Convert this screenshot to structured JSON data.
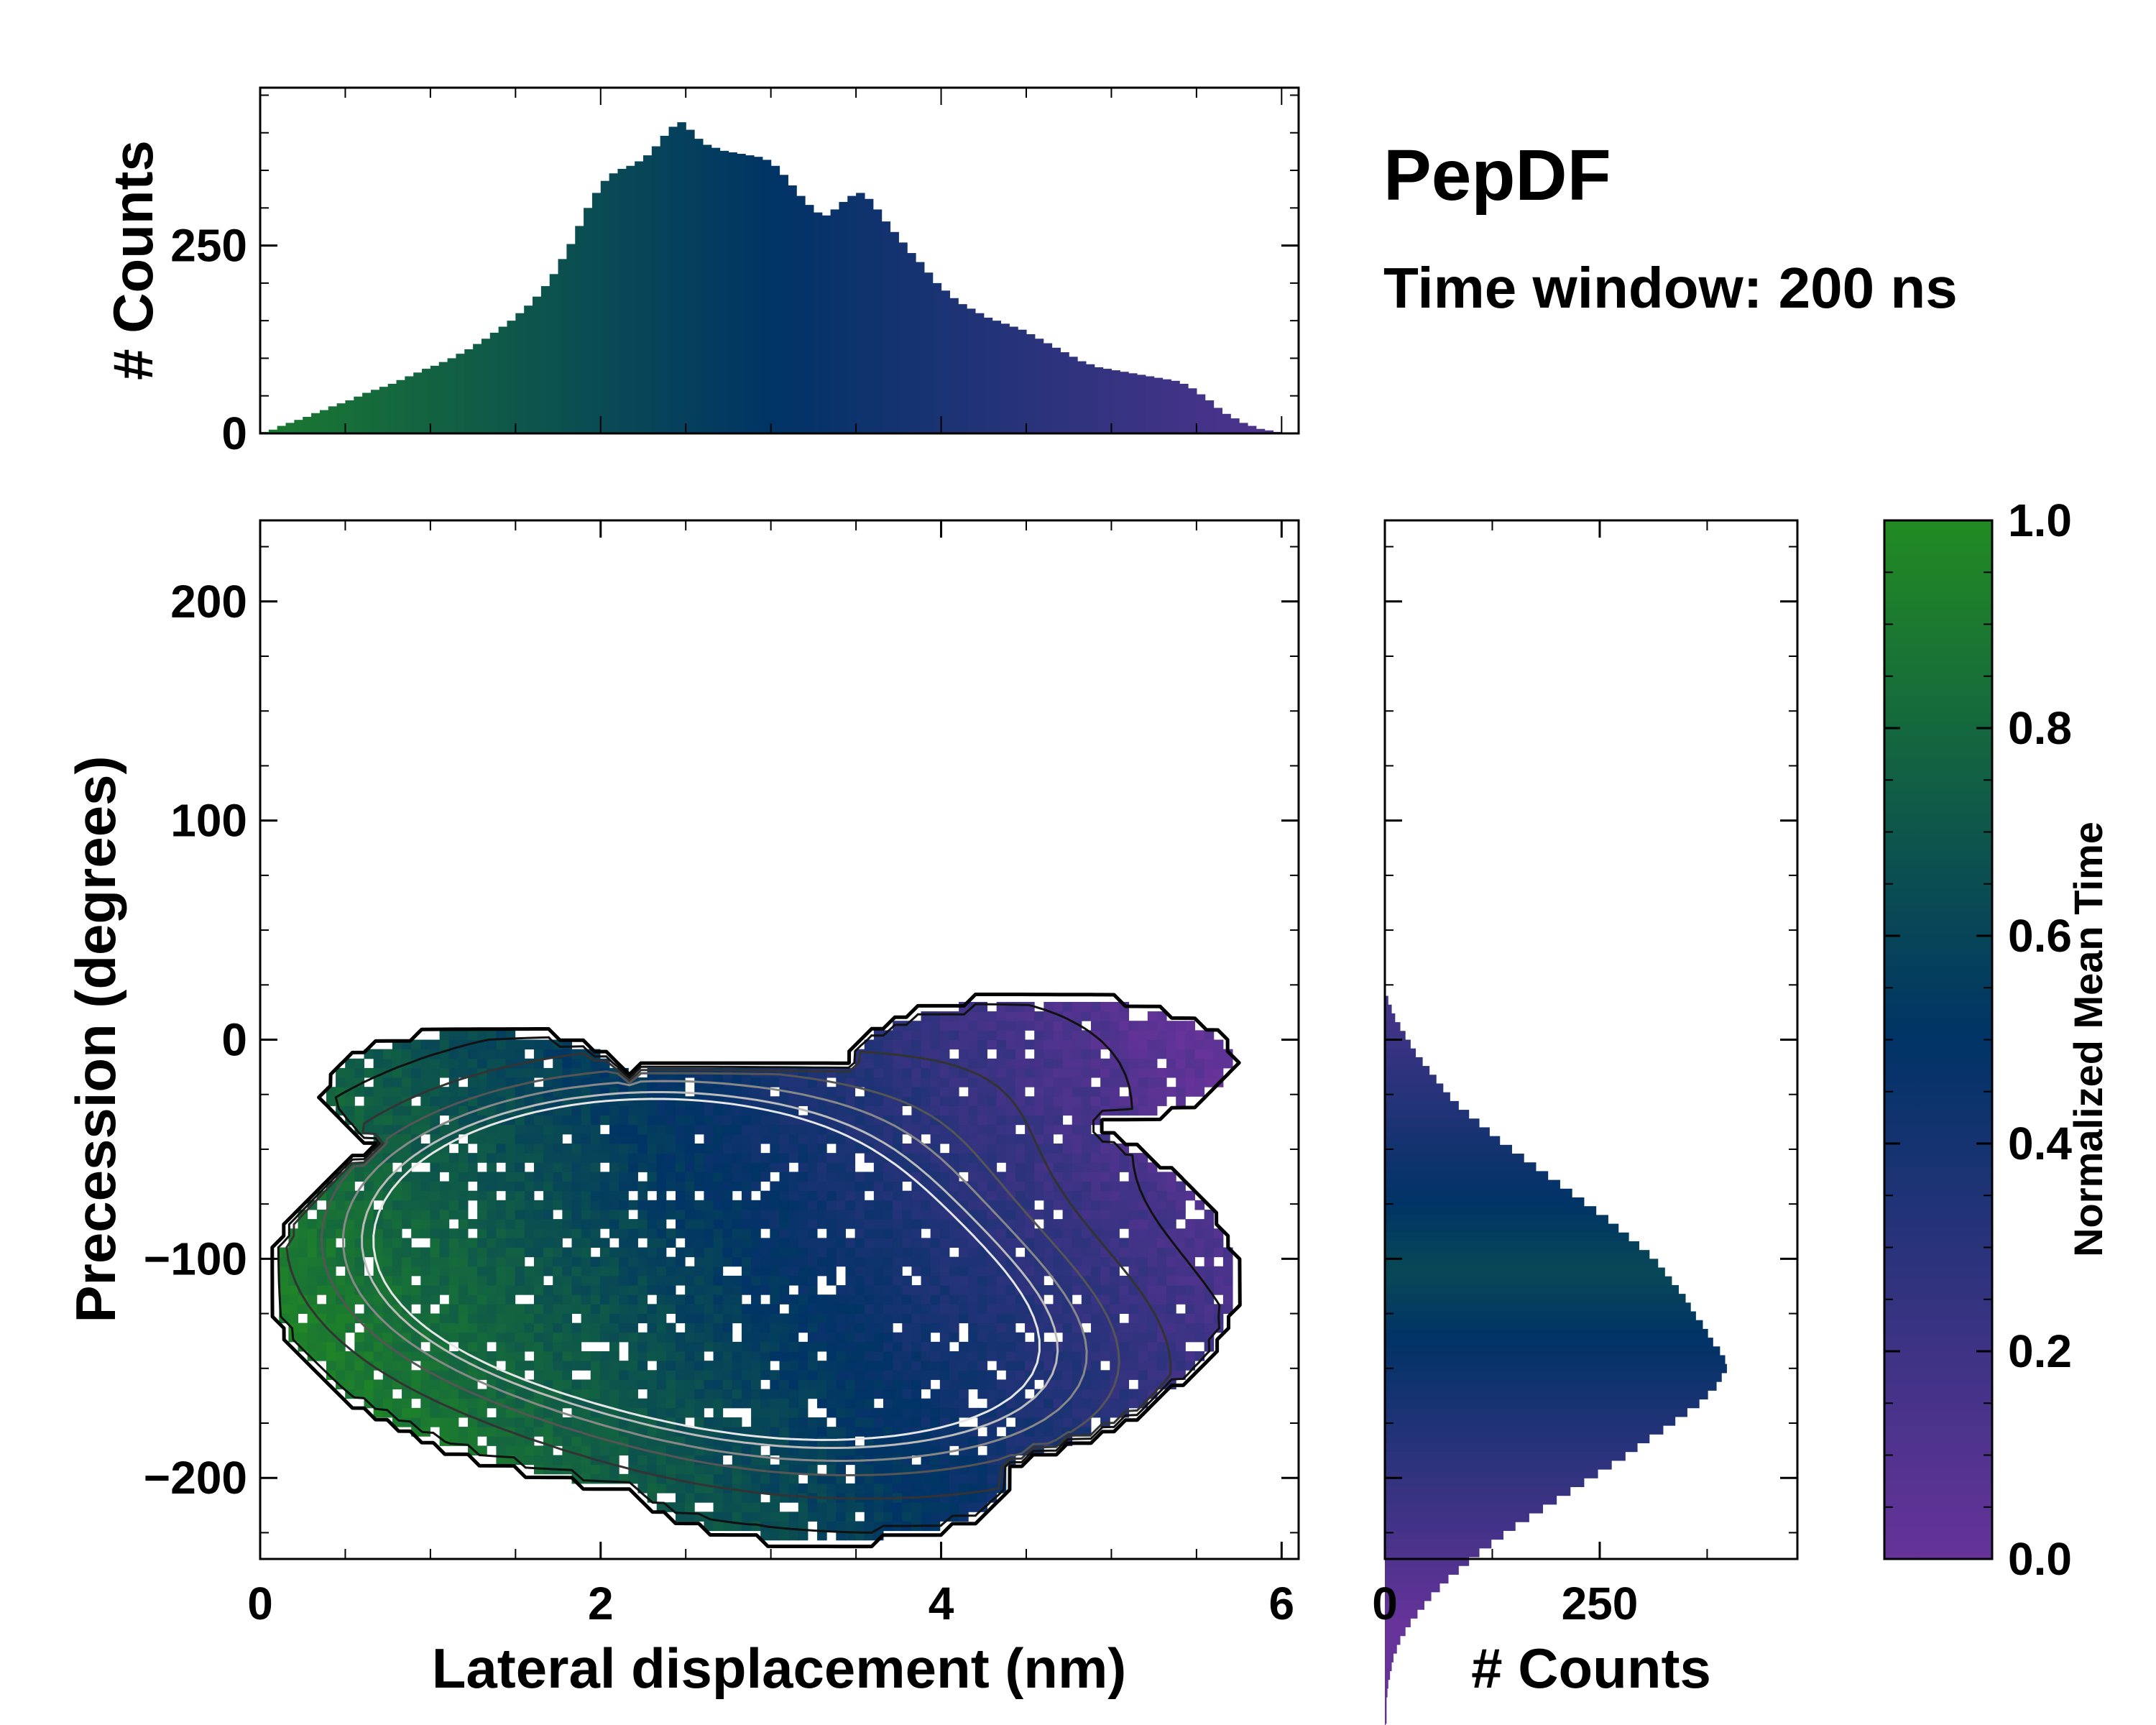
{
  "figure": {
    "title": "PepDF",
    "subtitle": "Time window: 200 ns"
  },
  "colors": {
    "green": "#228b22",
    "navy": "#003366",
    "purple": "#663399"
  },
  "chart_data": [
    {
      "id": "top-histogram",
      "type": "bar",
      "xlabel": "",
      "ylabel": "# Counts",
      "xlim": [
        0,
        6.1
      ],
      "ylim": [
        0,
        460
      ],
      "yticks": [
        0,
        250
      ],
      "x_bin_centers_start": 0.0,
      "x_bin_width": 0.05,
      "values": [
        2,
        5,
        10,
        14,
        18,
        22,
        27,
        31,
        36,
        40,
        44,
        49,
        54,
        58,
        62,
        66,
        71,
        76,
        81,
        86,
        90,
        95,
        100,
        106,
        112,
        119,
        126,
        134,
        142,
        150,
        160,
        170,
        182,
        196,
        212,
        232,
        252,
        276,
        300,
        320,
        336,
        346,
        352,
        356,
        362,
        370,
        382,
        396,
        408,
        414,
        404,
        392,
        384,
        380,
        376,
        374,
        372,
        370,
        368,
        364,
        356,
        344,
        330,
        316,
        304,
        294,
        290,
        298,
        308,
        316,
        320,
        312,
        298,
        282,
        268,
        254,
        240,
        228,
        214,
        200,
        190,
        180,
        172,
        166,
        160,
        154,
        150,
        146,
        142,
        138,
        132,
        126,
        120,
        114,
        108,
        102,
        96,
        92,
        88,
        86,
        84,
        82,
        80,
        78,
        76,
        74,
        72,
        70,
        66,
        60,
        52,
        44,
        34,
        26,
        20,
        14,
        10,
        6,
        4,
        2
      ],
      "legend": []
    },
    {
      "id": "main-2d-histogram",
      "type": "heatmap",
      "xlabel": "Lateral displacement (nm)",
      "ylabel": "Precession (degrees)",
      "xlim": [
        0,
        6.1
      ],
      "ylim": [
        -237,
        237
      ],
      "xticks": [
        0,
        2,
        4,
        6
      ],
      "yticks": [
        200,
        100,
        0,
        -100,
        -200
      ],
      "ytick_labels": [
        "200",
        "100",
        "0",
        "−100",
        "−200"
      ],
      "density_peaks": [
        {
          "x": 2.0,
          "y": -92,
          "weight": 1.0
        },
        {
          "x": 1.6,
          "y": -88,
          "weight": 0.8
        },
        {
          "x": 2.6,
          "y": -70,
          "weight": 0.85
        },
        {
          "x": 3.1,
          "y": -145,
          "weight": 0.85
        },
        {
          "x": 3.6,
          "y": -120,
          "weight": 0.7
        },
        {
          "x": 2.2,
          "y": -115,
          "weight": 0.6
        },
        {
          "x": 4.5,
          "y": -160,
          "weight": 0.45
        },
        {
          "x": 4.2,
          "y": -20,
          "weight": 0.3
        }
      ],
      "colormap": [
        "#663399",
        "#003366",
        "#228b22"
      ]
    },
    {
      "id": "right-histogram",
      "type": "bar",
      "orientation": "horizontal",
      "xlabel": "# Counts",
      "ylabel": "",
      "xlim": [
        0,
        480
      ],
      "xticks": [
        0,
        250
      ],
      "ylim": [
        -237,
        237
      ],
      "y_bin_start": 20,
      "y_bin_width": -4,
      "values": [
        4,
        8,
        12,
        18,
        24,
        30,
        36,
        44,
        52,
        60,
        68,
        76,
        86,
        98,
        110,
        122,
        134,
        148,
        162,
        176,
        190,
        204,
        218,
        232,
        246,
        260,
        272,
        284,
        296,
        308,
        318,
        326,
        334,
        342,
        350,
        356,
        362,
        370,
        376,
        382,
        390,
        396,
        398,
        392,
        386,
        376,
        366,
        352,
        338,
        324,
        308,
        294,
        280,
        264,
        248,
        232,
        216,
        200,
        184,
        168,
        152,
        138,
        124,
        110,
        98,
        86,
        74,
        64,
        54,
        46,
        38,
        30,
        24,
        18,
        14,
        10,
        8,
        6,
        4,
        3,
        2,
        2,
        2,
        1
      ],
      "legend": []
    },
    {
      "id": "colorbar",
      "type": "heatmap",
      "label": "Normalized Mean Time",
      "range": [
        0.0,
        1.0
      ],
      "ticks": [
        "0.0",
        "0.2",
        "0.4",
        "0.6",
        "0.8",
        "1.0"
      ]
    }
  ]
}
